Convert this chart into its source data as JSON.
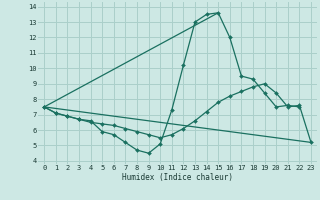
{
  "xlabel": "Humidex (Indice chaleur)",
  "background_color": "#cde8e4",
  "grid_color": "#aacfca",
  "line_color": "#1a7060",
  "xlim": [
    -0.5,
    23.5
  ],
  "ylim": [
    3.8,
    14.3
  ],
  "xticks": [
    0,
    1,
    2,
    3,
    4,
    5,
    6,
    7,
    8,
    9,
    10,
    11,
    12,
    13,
    14,
    15,
    16,
    17,
    18,
    19,
    20,
    21,
    22,
    23
  ],
  "yticks": [
    4,
    5,
    6,
    7,
    8,
    9,
    10,
    11,
    12,
    13,
    14
  ],
  "series": [
    {
      "x": [
        0,
        1,
        2,
        3,
        4,
        5,
        6,
        7,
        8,
        9,
        10,
        11,
        12,
        13,
        14,
        15,
        16,
        17,
        18,
        19,
        20,
        21,
        22
      ],
      "y": [
        7.5,
        7.1,
        6.9,
        6.7,
        6.6,
        5.9,
        5.7,
        5.2,
        4.7,
        4.5,
        5.1,
        7.3,
        10.2,
        13.0,
        13.5,
        13.6,
        12.0,
        9.5,
        9.3,
        8.4,
        7.5,
        7.6,
        7.5
      ],
      "marker": true
    },
    {
      "x": [
        0,
        1,
        2,
        3,
        4,
        5,
        6,
        7,
        8,
        9,
        10,
        11,
        12,
        13,
        14,
        15,
        16,
        17,
        18,
        19,
        20,
        21,
        22,
        23
      ],
      "y": [
        7.5,
        7.1,
        6.9,
        6.7,
        6.5,
        6.4,
        6.3,
        6.1,
        5.9,
        5.7,
        5.5,
        5.7,
        6.1,
        6.6,
        7.2,
        7.8,
        8.2,
        8.5,
        8.8,
        9.0,
        8.4,
        7.5,
        7.6,
        5.2
      ],
      "marker": true
    },
    {
      "comment": "straight line from (0,7.5) to (23,5.2)",
      "x": [
        0,
        23
      ],
      "y": [
        7.5,
        5.2
      ],
      "marker": false
    },
    {
      "x": [
        0,
        15
      ],
      "y": [
        7.5,
        13.6
      ],
      "marker": false
    }
  ]
}
